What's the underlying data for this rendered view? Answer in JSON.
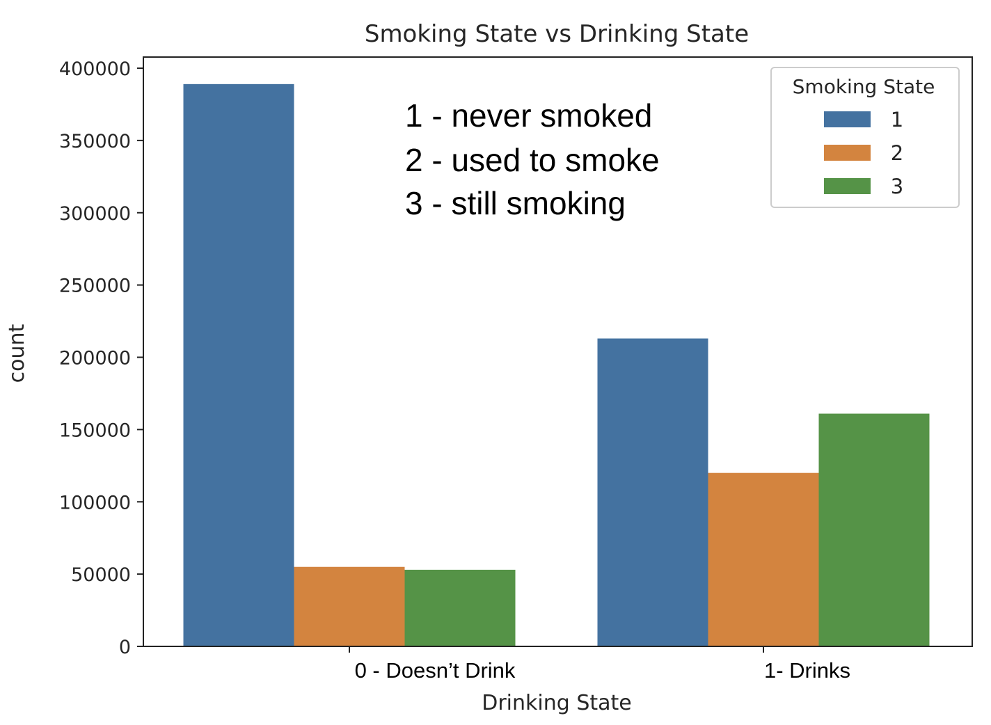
{
  "chart_data": {
    "type": "bar",
    "title": "Smoking State vs Drinking State",
    "xlabel": "Drinking State",
    "ylabel": "count",
    "categories": [
      "0 - Doesn’t Drink",
      "1- Drinks"
    ],
    "series": [
      {
        "name": "1",
        "color": "#4472a0",
        "values": [
          389000,
          213000
        ]
      },
      {
        "name": "2",
        "color": "#d3843f",
        "values": [
          55000,
          120000
        ]
      },
      {
        "name": "3",
        "color": "#559347",
        "values": [
          53000,
          161000
        ]
      }
    ],
    "ylim": [
      0,
      400000
    ],
    "yticks": [
      "0",
      "50000",
      "100000",
      "150000",
      "200000",
      "250000",
      "300000",
      "350000",
      "400000"
    ],
    "legend": {
      "title": "Smoking State",
      "placement": "top-right"
    },
    "annotation_lines": [
      "1 - never smoked",
      "2 - used to smoke",
      "3 - still smoking"
    ],
    "grid": false
  }
}
